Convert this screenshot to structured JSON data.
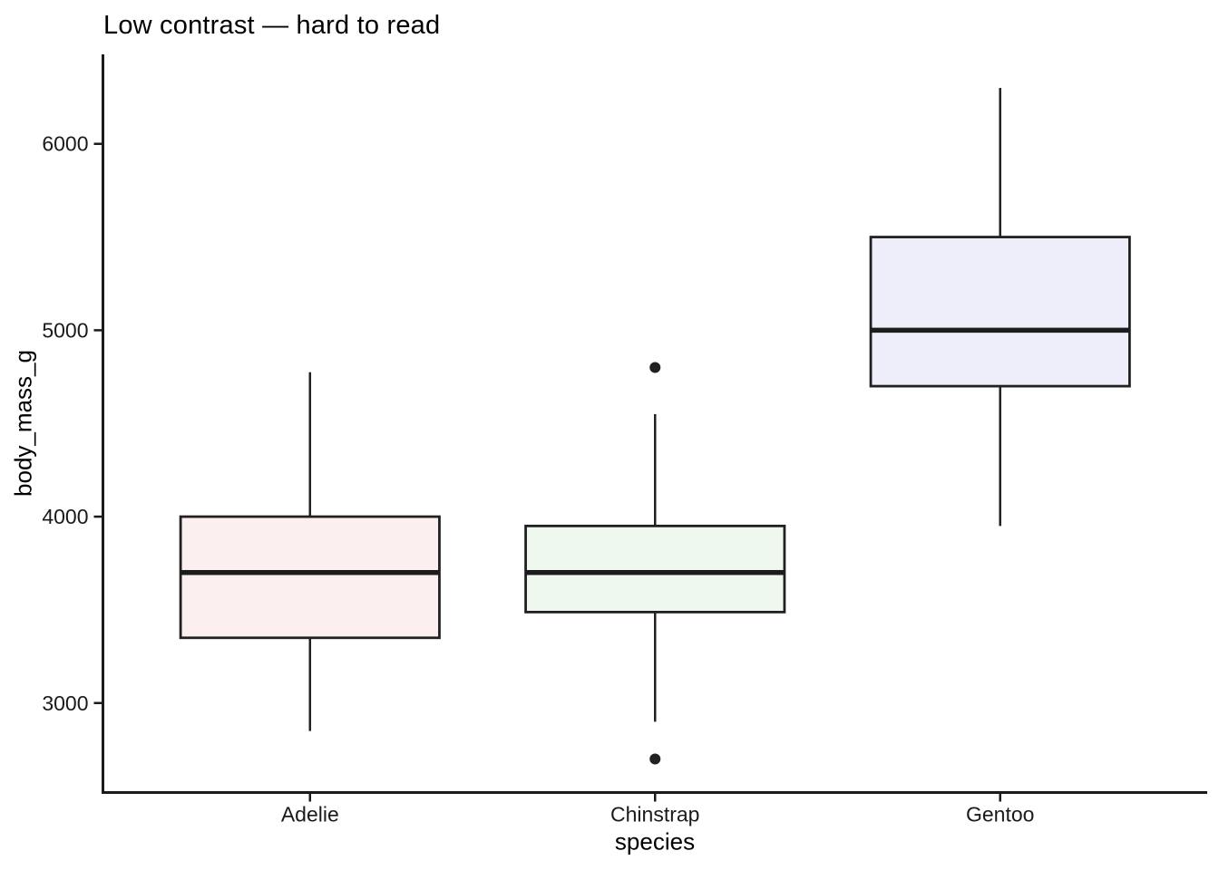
{
  "chart_data": {
    "type": "boxplot",
    "title": "Low contrast — hard to read",
    "xlabel": "species",
    "ylabel": "body_mass_g",
    "categories": [
      "Adelie",
      "Chinstrap",
      "Gentoo"
    ],
    "yticks": [
      3000,
      4000,
      5000,
      6000
    ],
    "ylim": [
      2520,
      6480
    ],
    "grid": false,
    "legend": "none",
    "series": [
      {
        "name": "Adelie",
        "whisker_low": 2850,
        "q1": 3350,
        "median": 3700,
        "q3": 4000,
        "whisker_high": 4775,
        "outliers": [],
        "fill": "#FCEFEF"
      },
      {
        "name": "Chinstrap",
        "whisker_low": 2900,
        "q1": 3488,
        "median": 3700,
        "q3": 3950,
        "whisker_high": 4550,
        "outliers": [
          2700,
          4800
        ],
        "fill": "#EFF8EF"
      },
      {
        "name": "Gentoo",
        "whisker_low": 3950,
        "q1": 4700,
        "median": 5000,
        "q3": 5500,
        "whisker_high": 6300,
        "outliers": [],
        "fill": "#EDEEF9"
      }
    ],
    "colors": {
      "stroke": "#212121",
      "median": "#1c1c1c",
      "outlier": "#212121",
      "axis": "#1a1a1a",
      "text": "#000000",
      "background": "#FFFFFF"
    }
  }
}
